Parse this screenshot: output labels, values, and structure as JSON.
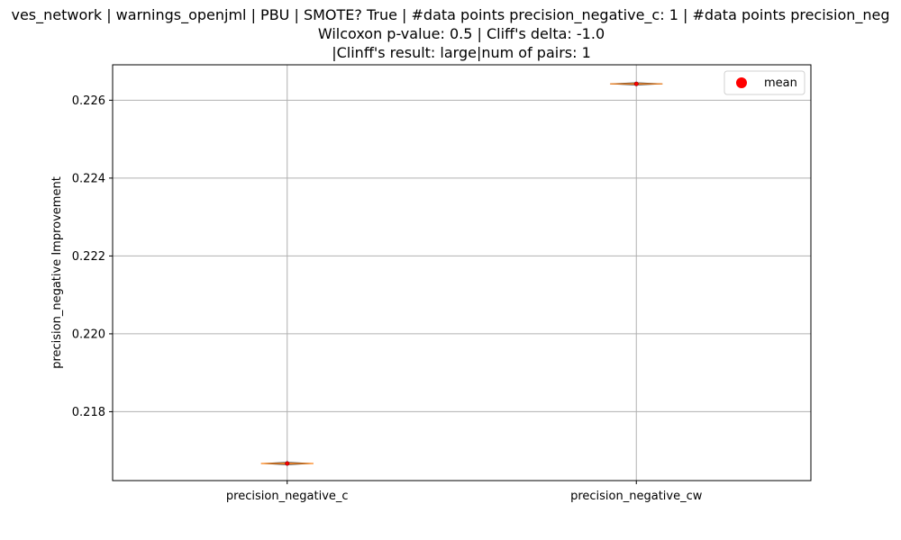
{
  "chart_data": {
    "type": "box",
    "title_lines": [
      "ves_network | warnings_openjml | PBU | SMOTE? True | #data points precision_negative_c: 1 | #data points precision_neg",
      "Wilcoxon p-value: 0.5 | Cliff's delta: -1.0",
      "|Clinff's result: large|num of pairs: 1"
    ],
    "ylabel": "precision_negative Improvement",
    "categories": [
      "precision_negative_c",
      "precision_negative_cw"
    ],
    "values": [
      0.21667,
      0.22642
    ],
    "means": [
      0.21667,
      0.22642
    ],
    "ylim": [
      0.21623,
      0.22691
    ],
    "yticks": [
      0.218,
      0.22,
      0.222,
      0.224,
      0.226
    ],
    "ytick_labels": [
      "0.218",
      "0.220",
      "0.222",
      "0.224",
      "0.226"
    ],
    "grid": true,
    "legend": {
      "placement": "top-right",
      "entries": [
        "mean"
      ]
    },
    "colors": {
      "box": "#ff7f0e",
      "mean_marker": "#ff0000",
      "grid": "#b0b0b0"
    }
  }
}
